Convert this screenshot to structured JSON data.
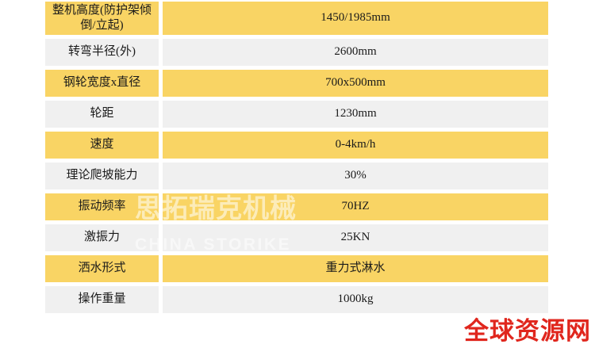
{
  "table": {
    "rows": [
      {
        "label": "整机高度(防护架倾倒/立起)",
        "value": "1450/1985mm"
      },
      {
        "label": "转弯半径(外)",
        "value": "2600mm"
      },
      {
        "label": "钢轮宽度x直径",
        "value": "700x500mm"
      },
      {
        "label": "轮距",
        "value": "1230mm"
      },
      {
        "label": "速度",
        "value": "0-4km/h"
      },
      {
        "label": "理论爬坡能力",
        "value": "30%"
      },
      {
        "label": "振动频率",
        "value": "70HZ"
      },
      {
        "label": "激振力",
        "value": "25KN"
      },
      {
        "label": "洒水形式",
        "value": "重力式淋水"
      },
      {
        "label": "操作重量",
        "value": "1000kg"
      }
    ]
  },
  "watermark": {
    "cn": "思拓瑞克机械",
    "en": "CHINA STORIKE"
  },
  "logo": {
    "text": "全球资源网"
  },
  "colors": {
    "row_yellow": "#f9d464",
    "row_gray": "#f0f0f0",
    "cell_text": "#1a1a1a",
    "logo_red": "#e0261d"
  }
}
